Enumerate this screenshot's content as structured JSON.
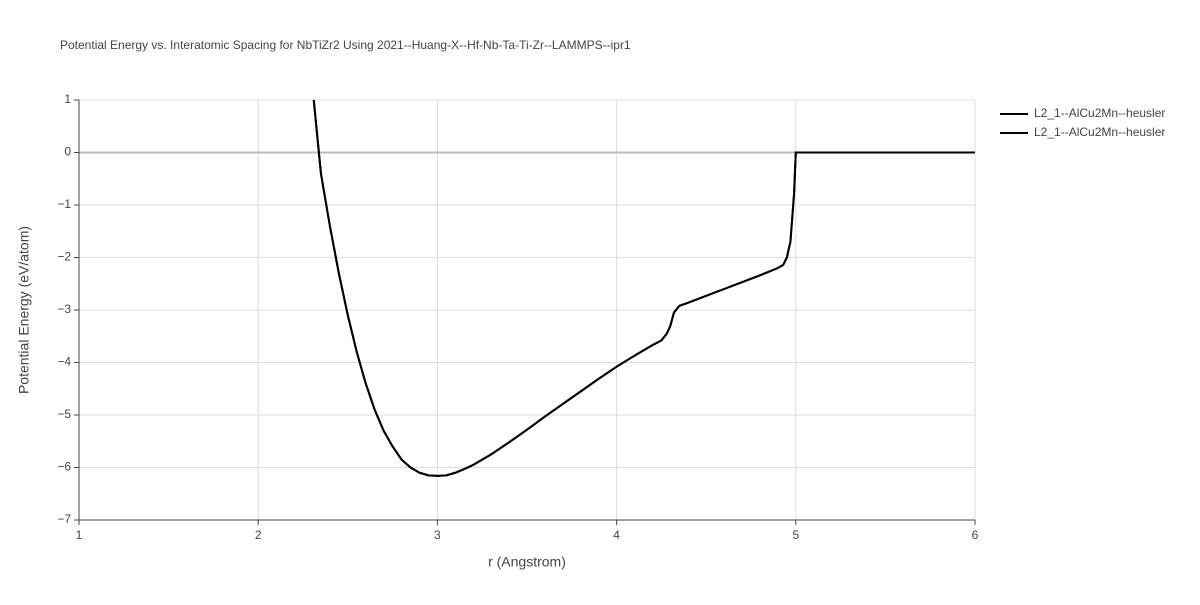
{
  "chart_data": {
    "type": "line",
    "title": "Potential Energy vs. Interatomic Spacing for NbTiZr2 Using 2021--Huang-X--Hf-Nb-Ta-Ti-Zr--LAMMPS--ipr1",
    "x_label": "r (Angstrom)",
    "y_label": "Potential Energy (eV/atom)",
    "x": [
      2.31,
      2.35,
      2.4,
      2.45,
      2.5,
      2.55,
      2.6,
      2.65,
      2.7,
      2.75,
      2.8,
      2.85,
      2.9,
      2.95,
      3.0,
      3.05,
      3.1,
      3.15,
      3.2,
      3.3,
      3.4,
      3.5,
      3.6,
      3.7,
      3.8,
      3.9,
      4.0,
      4.1,
      4.2,
      4.25,
      4.28,
      4.3,
      4.32,
      4.35,
      4.4,
      4.5,
      4.6,
      4.7,
      4.8,
      4.9,
      4.93,
      4.95,
      4.97,
      4.99,
      5.0,
      5.5,
      6.0
    ],
    "series": [
      {
        "name": "L2_1--AlCu2Mn--heusler",
        "color": "#000000",
        "values": [
          1.0,
          -0.4,
          -1.4,
          -2.3,
          -3.1,
          -3.8,
          -4.4,
          -4.9,
          -5.3,
          -5.6,
          -5.85,
          -6.0,
          -6.1,
          -6.15,
          -6.16,
          -6.15,
          -6.1,
          -6.03,
          -5.95,
          -5.75,
          -5.52,
          -5.28,
          -5.03,
          -4.79,
          -4.55,
          -4.31,
          -4.08,
          -3.87,
          -3.67,
          -3.58,
          -3.45,
          -3.3,
          -3.05,
          -2.92,
          -2.86,
          -2.73,
          -2.6,
          -2.47,
          -2.34,
          -2.2,
          -2.14,
          -2.0,
          -1.7,
          -0.8,
          0,
          0,
          0
        ]
      },
      {
        "name": "L2_1--AlCu2Mn--heusler",
        "color": "#000000",
        "values": [
          1.0,
          -0.4,
          -1.4,
          -2.3,
          -3.1,
          -3.8,
          -4.4,
          -4.9,
          -5.3,
          -5.6,
          -5.85,
          -6.0,
          -6.1,
          -6.15,
          -6.16,
          -6.15,
          -6.1,
          -6.03,
          -5.95,
          -5.75,
          -5.52,
          -5.28,
          -5.03,
          -4.79,
          -4.55,
          -4.31,
          -4.08,
          -3.87,
          -3.67,
          -3.58,
          -3.45,
          -3.3,
          -3.05,
          -2.92,
          -2.86,
          -2.73,
          -2.6,
          -2.47,
          -2.34,
          -2.2,
          -2.14,
          -2.0,
          -1.7,
          -0.8,
          0,
          0,
          0
        ]
      }
    ],
    "xlim": [
      1,
      6
    ],
    "xticks": [
      1,
      2,
      3,
      4,
      5,
      6
    ],
    "ylim": [
      -7,
      1
    ],
    "yticks": [
      {
        "value": -7,
        "label": "−7"
      },
      {
        "value": -6,
        "label": "−6"
      },
      {
        "value": -5,
        "label": "−5"
      },
      {
        "value": -4,
        "label": "−4"
      },
      {
        "value": -3,
        "label": "−3"
      },
      {
        "value": -2,
        "label": "−2"
      },
      {
        "value": -1,
        "label": "−1"
      },
      0,
      1
    ],
    "grid": true,
    "legend": "top-right"
  }
}
